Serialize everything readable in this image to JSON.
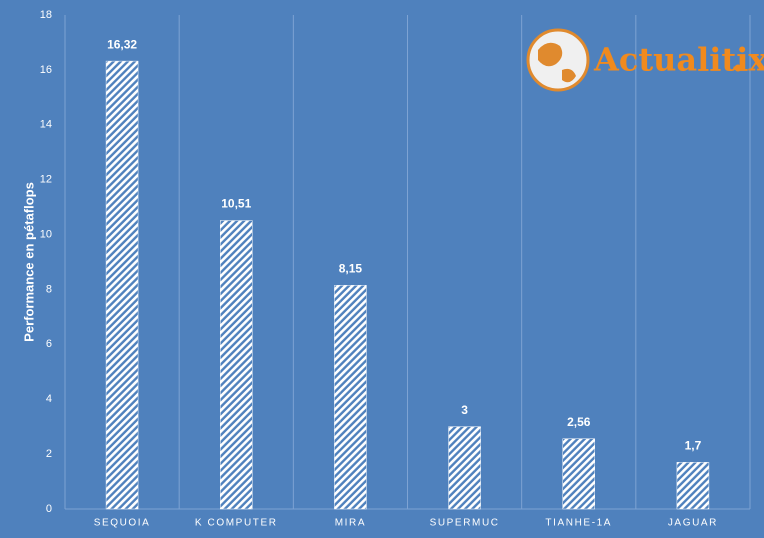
{
  "chart_data": {
    "type": "bar",
    "ylabel": "Performance en pétaflops",
    "categories": [
      "SEQUOIA",
      "K COMPUTER",
      "MIRA",
      "SUPERMUC",
      "TIANHE-1A",
      "JAGUAR"
    ],
    "values": [
      16.32,
      10.51,
      8.15,
      3,
      2.56,
      1.7
    ],
    "value_labels": [
      "16,32",
      "10,51",
      "8,15",
      "3",
      "2,56",
      "1,7"
    ],
    "color": "#ffffff",
    "background": "#4f81bd",
    "ylim": [
      0,
      18
    ],
    "yticks": [
      0,
      2,
      4,
      6,
      8,
      10,
      12,
      14,
      16,
      18
    ],
    "logo_text": "Actualitix"
  }
}
